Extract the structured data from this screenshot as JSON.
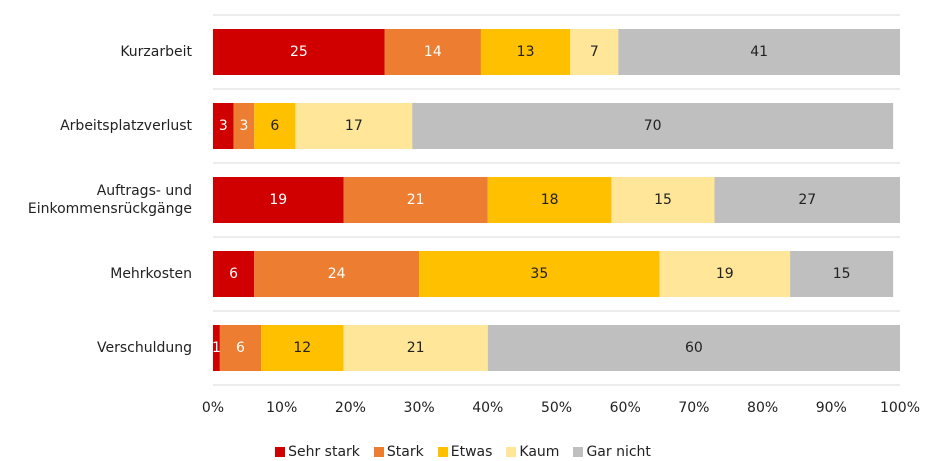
{
  "chart_data": {
    "type": "stacked-bar-horizontal",
    "categories": [
      "Kurzarbeit",
      "Arbeitsplatzverlust",
      "Auftrags- und Einkommensrückgänge",
      "Mehrkosten",
      "Verschuldung"
    ],
    "series": [
      {
        "name": "Sehr stark",
        "color": "#d00000",
        "label_color": "#ffffff",
        "values": [
          25,
          3,
          19,
          6,
          1
        ]
      },
      {
        "name": "Stark",
        "color": "#ed7d31",
        "label_color": "#ffffff",
        "values": [
          14,
          3,
          21,
          24,
          6
        ]
      },
      {
        "name": "Etwas",
        "color": "#ffc000",
        "label_color": "#222222",
        "values": [
          13,
          6,
          18,
          35,
          12
        ]
      },
      {
        "name": "Kaum",
        "color": "#ffe699",
        "label_color": "#222222",
        "values": [
          7,
          17,
          15,
          19,
          21
        ]
      },
      {
        "name": "Gar nicht",
        "color": "#bfbfbf",
        "label_color": "#222222",
        "values": [
          41,
          70,
          27,
          15,
          60
        ]
      }
    ],
    "xlim": [
      0,
      100
    ],
    "xticks": [
      {
        "value": 0,
        "label": "0%"
      },
      {
        "value": 10,
        "label": "10%"
      },
      {
        "value": 20,
        "label": "20%"
      },
      {
        "value": 30,
        "label": "30%"
      },
      {
        "value": 40,
        "label": "40%"
      },
      {
        "value": 50,
        "label": "50%"
      },
      {
        "value": 60,
        "label": "60%"
      },
      {
        "value": 70,
        "label": "70%"
      },
      {
        "value": 80,
        "label": "80%"
      },
      {
        "value": 90,
        "label": "90%"
      },
      {
        "value": 100,
        "label": "100%"
      }
    ],
    "legend": "bottom"
  }
}
